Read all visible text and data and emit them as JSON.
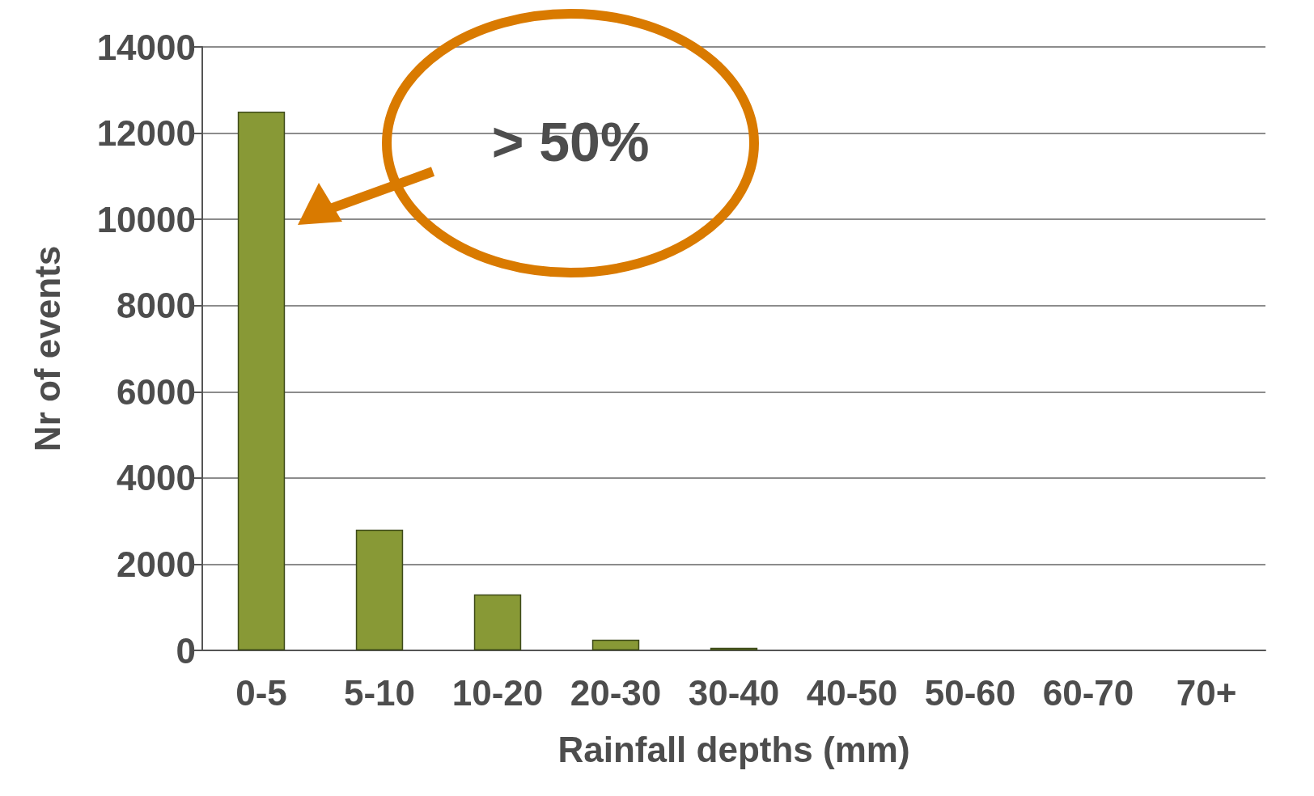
{
  "chart_data": {
    "type": "bar",
    "xlabel": "Rainfall depths (mm)",
    "ylabel": "Nr of events",
    "categories": [
      "0-5",
      "5-10",
      "10-20",
      "20-30",
      "30-40",
      "40-50",
      "50-60",
      "60-70",
      "70+"
    ],
    "values": [
      12500,
      2800,
      1300,
      250,
      60,
      0,
      0,
      0,
      0
    ],
    "color": "#889936",
    "ylim": [
      0,
      14000
    ],
    "yticks": [
      0,
      2000,
      4000,
      6000,
      8000,
      10000,
      12000,
      14000
    ],
    "grid": "y",
    "annotations": [
      "> 50%"
    ]
  }
}
